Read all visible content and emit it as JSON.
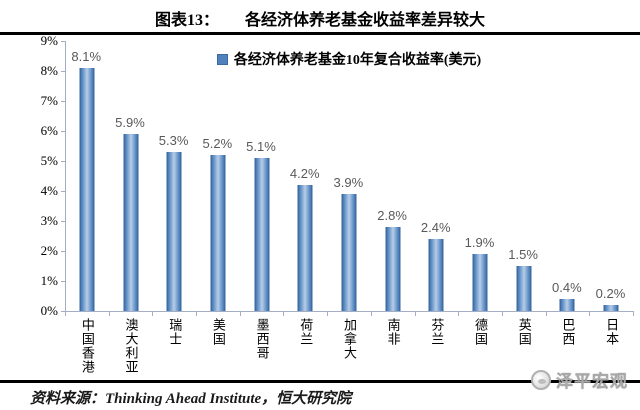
{
  "header": {
    "figure_label": "图表13：",
    "title": "各经济体养老基金收益率差异较大"
  },
  "chart_data": {
    "type": "bar",
    "title": "各经济体养老基金收益率差异较大",
    "legend": "各经济体养老基金10年复合收益率(美元)",
    "legend_position": "top-center",
    "categories": [
      "中国香港",
      "澳大利亚",
      "瑞士",
      "美国",
      "墨西哥",
      "荷兰",
      "加拿大",
      "南非",
      "芬兰",
      "德国",
      "英国",
      "巴西",
      "日本"
    ],
    "values": [
      8.1,
      5.9,
      5.3,
      5.2,
      5.1,
      4.2,
      3.9,
      2.8,
      2.4,
      1.9,
      1.5,
      0.4,
      0.2
    ],
    "value_labels": [
      "8.1%",
      "5.9%",
      "5.3%",
      "5.2%",
      "5.1%",
      "4.2%",
      "3.9%",
      "2.8%",
      "2.4%",
      "1.9%",
      "1.5%",
      "0.4%",
      "0.2%"
    ],
    "xlabel": "",
    "ylabel": "",
    "ylim": [
      0,
      9
    ],
    "y_ticks": [
      "9%",
      "8%",
      "7%",
      "6%",
      "5%",
      "4%",
      "3%",
      "2%",
      "1%",
      "0%"
    ],
    "grid": false,
    "bar_color_edge": "#3f72ae",
    "bar_color_center": "#b6cde8",
    "legend_swatch_color": "#4f81bd",
    "axis_color": "#a3aec5",
    "value_label_color": "#595959"
  },
  "footer": {
    "source": "资料来源：Thinking Ahead Institute，恒大研究院",
    "watermark": "泽平宏观"
  }
}
